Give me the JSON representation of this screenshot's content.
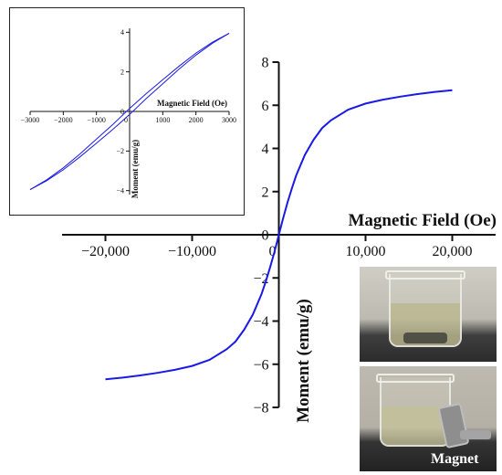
{
  "chart_data": [
    {
      "type": "line",
      "name": "main",
      "xlabel": "Magnetic Field (Oe)",
      "ylabel": "Moment (emu/g)",
      "xlim": [
        -25000,
        25000
      ],
      "ylim": [
        -8,
        8
      ],
      "x_ticks": [
        -20000,
        -10000,
        0,
        10000,
        20000
      ],
      "x_tick_labels": [
        "−20,000",
        "−10,000",
        "0",
        "10,000",
        "20,000"
      ],
      "y_ticks": [
        -8,
        -6,
        -4,
        -2,
        0,
        2,
        4,
        6,
        8
      ],
      "y_tick_labels": [
        "−8",
        "−6",
        "−4",
        "−2",
        "0",
        "2",
        "4",
        "6",
        "8"
      ],
      "grid": false,
      "color": "#1a1ae6",
      "series": [
        {
          "x": [
            -20000,
            -18000,
            -16000,
            -14000,
            -12000,
            -10000,
            -8000,
            -6000,
            -5000,
            -4000,
            -3000,
            -2000,
            -1500,
            -1000,
            -500,
            0,
            500,
            1000,
            1500,
            2000,
            3000,
            4000,
            5000,
            6000,
            8000,
            10000,
            12000,
            14000,
            16000,
            18000,
            20000
          ],
          "y": [
            -6.7,
            -6.62,
            -6.52,
            -6.4,
            -6.26,
            -6.08,
            -5.8,
            -5.3,
            -4.95,
            -4.4,
            -3.7,
            -2.75,
            -2.15,
            -1.5,
            -0.78,
            0,
            0.78,
            1.5,
            2.15,
            2.75,
            3.7,
            4.4,
            4.95,
            5.3,
            5.8,
            6.08,
            6.26,
            6.4,
            6.52,
            6.62,
            6.7
          ]
        }
      ]
    },
    {
      "type": "line",
      "name": "inset",
      "xlabel": "Magnetic Field (Oe)",
      "ylabel": "Moment (emu/g)",
      "xlim": [
        -3000,
        3000
      ],
      "ylim": [
        -4.2,
        4.2
      ],
      "x_ticks": [
        -3000,
        -2000,
        -1000,
        0,
        1000,
        2000,
        3000
      ],
      "x_tick_labels": [
        "−3000",
        "−2000",
        "−1000",
        "0",
        "1000",
        "2000",
        "3000"
      ],
      "y_ticks": [
        -4,
        -2,
        0,
        2,
        4
      ],
      "y_tick_labels": [
        "−4",
        "−2",
        "0",
        "2",
        "4"
      ],
      "grid": false,
      "color": "#1a1ae6",
      "series": [
        {
          "x": [
            -3000,
            -2500,
            -2000,
            -1500,
            -1000,
            -500,
            0,
            500,
            1000,
            1500,
            2000,
            2500,
            3000
          ],
          "y": [
            -3.95,
            -3.5,
            -2.95,
            -2.3,
            -1.6,
            -0.9,
            -0.15,
            0.65,
            1.4,
            2.15,
            2.85,
            3.45,
            3.95
          ]
        },
        {
          "x": [
            -3000,
            -2500,
            -2000,
            -1500,
            -1000,
            -500,
            0,
            500,
            1000,
            1500,
            2000,
            2500,
            3000
          ],
          "y": [
            -3.95,
            -3.45,
            -2.85,
            -2.15,
            -1.4,
            -0.65,
            0.15,
            0.9,
            1.6,
            2.3,
            2.95,
            3.5,
            3.95
          ]
        }
      ]
    }
  ],
  "photos": {
    "bottom_label": "Magnet"
  }
}
